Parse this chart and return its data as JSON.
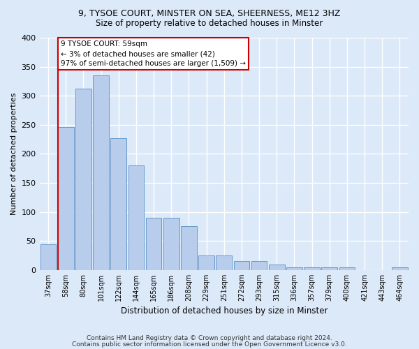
{
  "title1": "9, TYSOE COURT, MINSTER ON SEA, SHEERNESS, ME12 3HZ",
  "title2": "Size of property relative to detached houses in Minster",
  "xlabel": "Distribution of detached houses by size in Minster",
  "ylabel": "Number of detached properties",
  "footer_line1": "Contains HM Land Registry data © Crown copyright and database right 2024.",
  "footer_line2": "Contains public sector information licensed under the Open Government Licence v3.0.",
  "categories": [
    "37sqm",
    "58sqm",
    "80sqm",
    "101sqm",
    "122sqm",
    "144sqm",
    "165sqm",
    "186sqm",
    "208sqm",
    "229sqm",
    "251sqm",
    "272sqm",
    "293sqm",
    "315sqm",
    "336sqm",
    "357sqm",
    "379sqm",
    "400sqm",
    "421sqm",
    "443sqm",
    "464sqm"
  ],
  "values": [
    44,
    246,
    312,
    335,
    227,
    180,
    90,
    90,
    75,
    25,
    25,
    15,
    15,
    9,
    5,
    5,
    5,
    4,
    0,
    0,
    4
  ],
  "bar_color": "#b8cceb",
  "bar_edge_color": "#6699cc",
  "vline_color": "#cc0000",
  "vline_x_index": 1,
  "annotation_title": "9 TYSOE COURT: 59sqm",
  "annotation_line1": "← 3% of detached houses are smaller (42)",
  "annotation_line2": "97% of semi-detached houses are larger (1,509) →",
  "annotation_box_facecolor": "#ffffff",
  "annotation_box_edgecolor": "#cc0000",
  "bg_color": "#dce9f8",
  "plot_bg_color": "#dce9f8",
  "grid_color": "#ffffff",
  "ylim": [
    0,
    400
  ],
  "yticks": [
    0,
    50,
    100,
    150,
    200,
    250,
    300,
    350,
    400
  ]
}
